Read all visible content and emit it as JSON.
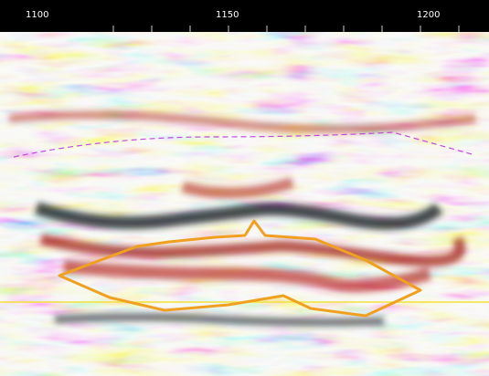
{
  "header": {
    "labels": [
      "1100",
      "1150",
      "1200"
    ]
  }
}
